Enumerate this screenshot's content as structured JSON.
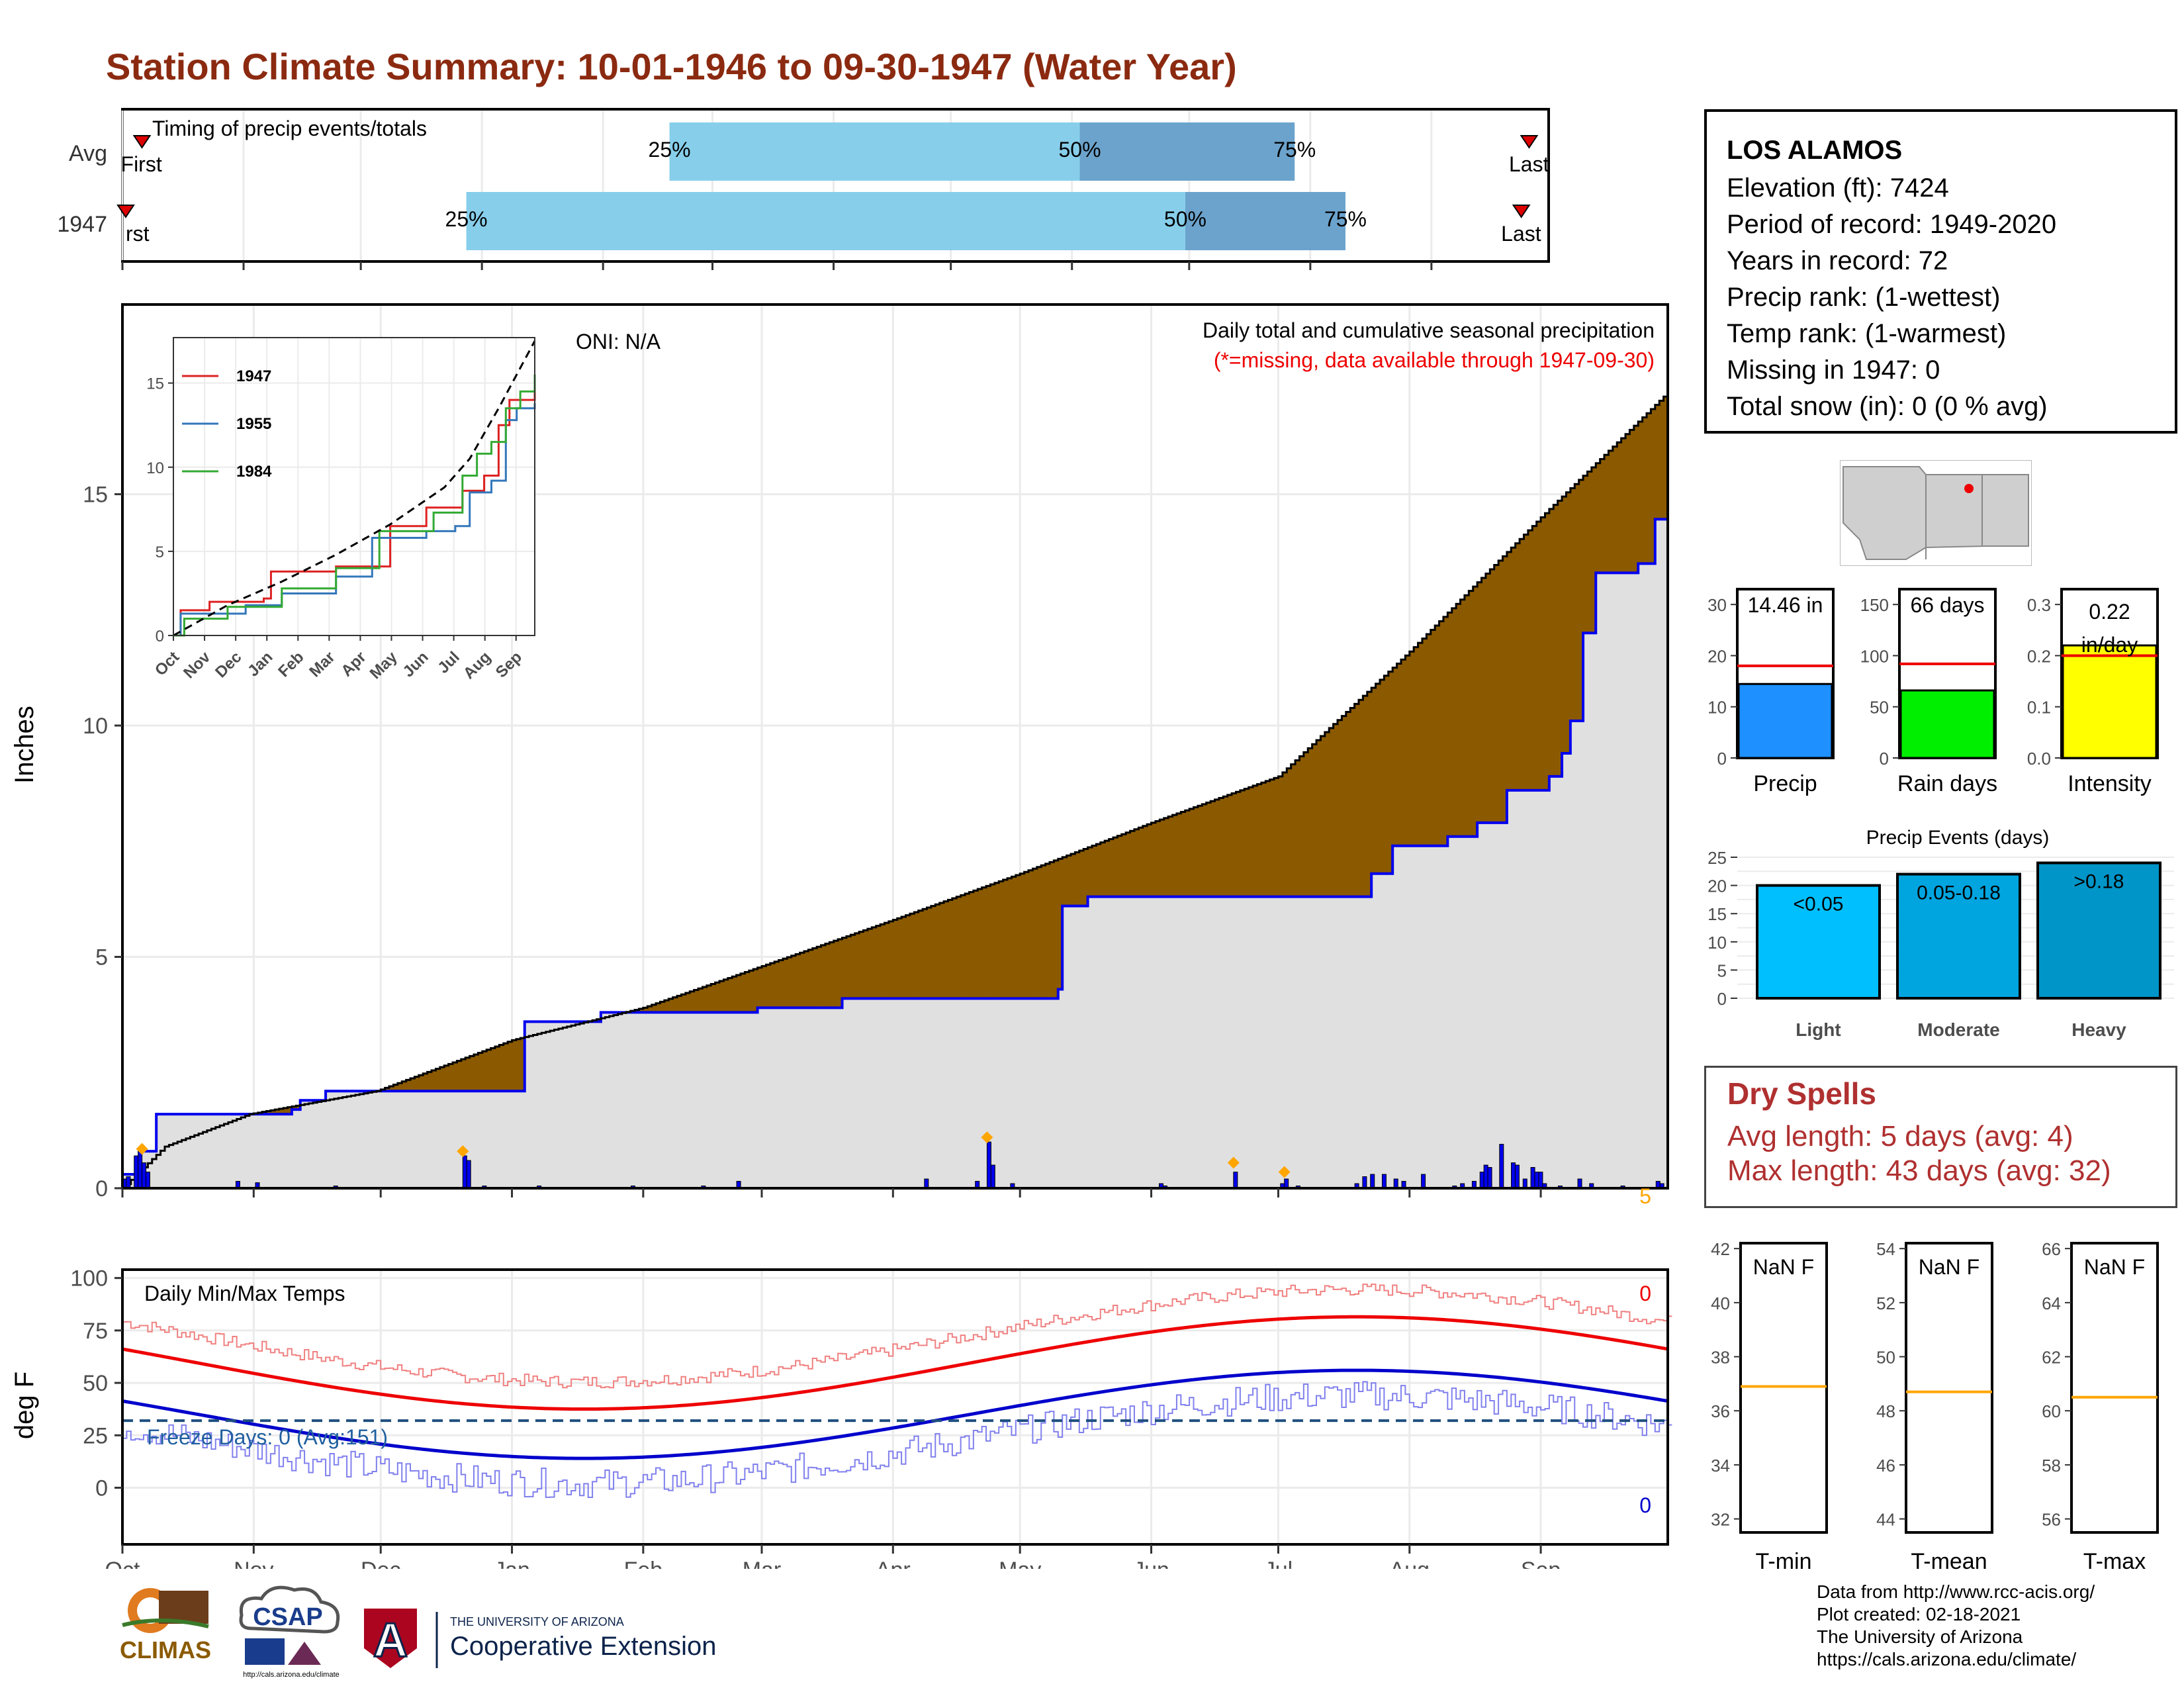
{
  "title": "Station Climate Summary: 10-01-1946 to 09-30-1947 (Water Year)",
  "timing": {
    "label": "Timing of precip events/totals",
    "rows": [
      {
        "name": "Avg",
        "first_label": "First",
        "last_label": "Last",
        "p25": "25%",
        "p50": "50%",
        "p75": "75%",
        "first_day": 5,
        "last_day": 360,
        "d25": 140,
        "d50": 245,
        "d75": 300
      },
      {
        "name": "1947",
        "first_label": "rst",
        "last_label": "Last",
        "p25": "25%",
        "p50": "50%",
        "p75": "75%",
        "first_day": 0,
        "last_day": 358,
        "d25": 88,
        "d50": 272,
        "d75": 313
      }
    ],
    "colors": {
      "light": "#87ceeb",
      "dark": "#6ba3cc",
      "marker": "#dd0000"
    }
  },
  "station": {
    "name": "LOS ALAMOS",
    "lines": [
      "Elevation (ft): 7424",
      "Period of record: 1949-2020",
      "Years in record: 72",
      "Precip rank:  (1-wettest)",
      "Temp rank:  (1-warmest)",
      "Missing in 1947: 0",
      "Total snow (in): 0 (0 % avg)"
    ]
  },
  "main_chart": {
    "oni": "ONI: N/A",
    "subtitle": "Daily total and cumulative seasonal precipitation",
    "missing_note": "(*=missing, data available through 1947-09-30)",
    "ylabel": "Inches",
    "yticks": [
      "0",
      "5",
      "10",
      "15"
    ],
    "max_daily_label": "5",
    "months": [
      "Oct",
      "Nov",
      "Dec",
      "Jan",
      "Feb",
      "Mar",
      "Apr",
      "May",
      "Jun",
      "Jul",
      "Aug",
      "Sep"
    ],
    "colors": {
      "surplus": "#008000",
      "deficit": "#8b5a00",
      "observed_area": "#e0e0e0",
      "observed_line": "#0000ee",
      "daily_bar": "#0000ee",
      "marker": "#ffa500"
    }
  },
  "inset": {
    "legend": [
      "1947",
      "1955",
      "1984"
    ],
    "yticks": [
      "0",
      "5",
      "10",
      "15"
    ],
    "months": [
      "Oct",
      "Nov",
      "Dec",
      "Jan",
      "Feb",
      "Mar",
      "Apr",
      "May",
      "Jun",
      "Jul",
      "Aug",
      "Sep"
    ],
    "colors": [
      "#dd2222",
      "#3377bb",
      "#33aa33"
    ]
  },
  "temp_chart": {
    "label": "Daily Min/Max Temps",
    "ylabel": "deg F",
    "yticks": [
      "0",
      "25",
      "50",
      "75",
      "100"
    ],
    "freeze_label": "Freeze Days: 0 (Avg:151)",
    "max_count": "0",
    "min_count": "0"
  },
  "bars": [
    {
      "label": "Precip",
      "value_text": "14.46 in",
      "yticks": [
        "0",
        "10",
        "20",
        "30"
      ],
      "ymax": 33,
      "value": 14.46,
      "avg": 18,
      "color": "#1e90ff"
    },
    {
      "label": "Rain days",
      "value_text": "66 days",
      "yticks": [
        "0",
        "50",
        "100",
        "150"
      ],
      "ymax": 165,
      "value": 66,
      "avg": 92,
      "color": "#00ee00"
    },
    {
      "label": "Intensity",
      "value_text_lines": [
        "0.22",
        "in/day"
      ],
      "yticks": [
        "0.0",
        "0.1",
        "0.2",
        "0.3"
      ],
      "ymax": 0.33,
      "value": 0.22,
      "avg": 0.2,
      "color": "#ffff00"
    }
  ],
  "events": {
    "title": "Precip Events (days)",
    "yticks": [
      "0",
      "5",
      "10",
      "15",
      "20",
      "25"
    ],
    "ymax": 25,
    "categories": [
      "Light",
      "Moderate",
      "Heavy"
    ],
    "labels": [
      "<0.05",
      "0.05-0.18",
      ">0.18"
    ],
    "values": [
      20,
      22,
      24
    ],
    "colors": [
      "#00bfff",
      "#00a5e0",
      "#0095c8"
    ]
  },
  "dry_spells": {
    "title": "Dry Spells",
    "avg_length": "Avg length: 5 days (avg: 4)",
    "max_length": "Max length: 43 days (avg: 32)"
  },
  "temp_boxes": [
    {
      "label": "T-min",
      "value_text": "NaN F",
      "yticks": [
        "32",
        "34",
        "36",
        "38",
        "40",
        "42"
      ],
      "ymin": 31.5,
      "ymax": 42.2,
      "avg": 36.9
    },
    {
      "label": "T-mean",
      "value_text": "NaN F",
      "yticks": [
        "44",
        "46",
        "48",
        "50",
        "52",
        "54"
      ],
      "ymin": 43.5,
      "ymax": 54.2,
      "avg": 48.7
    },
    {
      "label": "T-max",
      "value_text": "NaN F",
      "yticks": [
        "56",
        "58",
        "60",
        "62",
        "64",
        "66"
      ],
      "ymin": 55.5,
      "ymax": 66.2,
      "avg": 60.5
    }
  ],
  "footer": {
    "lines": [
      "Data from http://www.rcc-acis.org/",
      "Plot created: 02-18-2021",
      "The University of Arizona",
      "https://cals.arizona.edu/climate/"
    ],
    "logos": {
      "climas": "CLIMAS",
      "csap": "CSAP",
      "csap_url": "http://cals.arizona.edu/climate",
      "ua_line1": "THE UNIVERSITY OF ARIZONA",
      "ua_line2": "Cooperative Extension",
      "ua_letter": "A"
    }
  }
}
